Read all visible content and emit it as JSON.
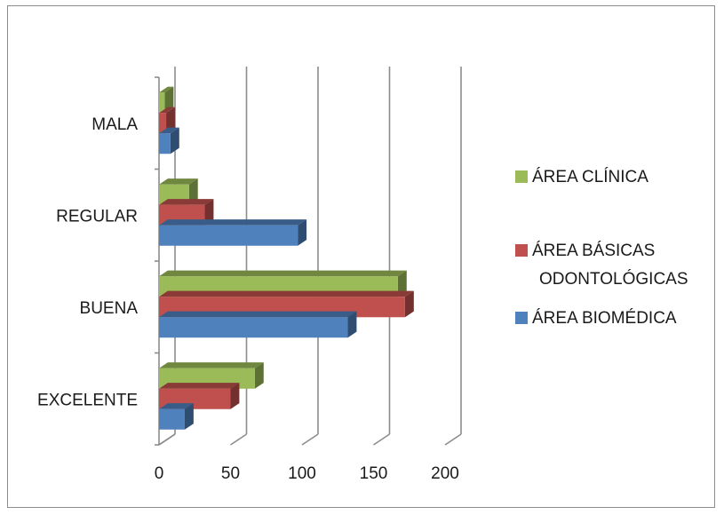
{
  "chart_data": {
    "type": "bar",
    "orientation": "horizontal",
    "style": "3d-clustered",
    "categories": [
      "EXCELENTE",
      "BUENA",
      "REGULAR",
      "MALA"
    ],
    "series": [
      {
        "name": "ÁREA BIOMÉDICA",
        "color": "#4f81bd",
        "values": [
          18,
          132,
          97,
          8
        ]
      },
      {
        "name": "ÁREA BÁSICAS ODONTOLÓGICAS",
        "color": "#c0504d",
        "values": [
          50,
          172,
          32,
          5
        ]
      },
      {
        "name": "ÁREA CLÍNICA",
        "color": "#9bbb59",
        "values": [
          67,
          167,
          21,
          4
        ]
      }
    ],
    "xlim": [
      0,
      200
    ],
    "xticks": [
      "0",
      "50",
      "100",
      "150",
      "200"
    ],
    "grid": true,
    "legend_position": "right",
    "legend_order": [
      "ÁREA CLÍNICA",
      "ÁREA BÁSICAS ODONTOLÓGICAS",
      "ÁREA BIOMÉDICA"
    ],
    "title": "",
    "xlabel": "",
    "ylabel": ""
  }
}
